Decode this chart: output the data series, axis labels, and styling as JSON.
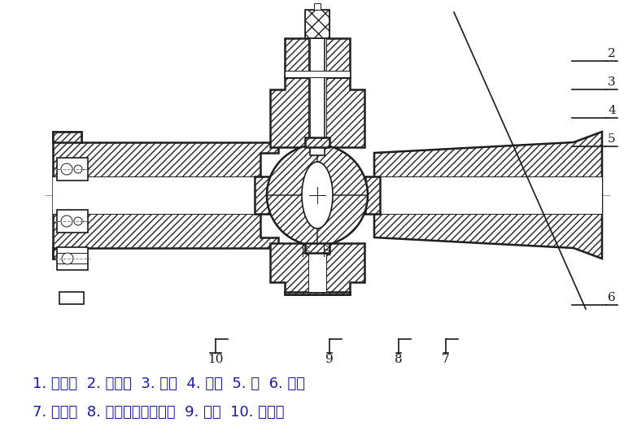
{
  "bg_color": "#ffffff",
  "line_color": "#1a1a1a",
  "hatch_color": "#222222",
  "label_color": "#1a1aaa",
  "fig_width": 7.83,
  "fig_height": 5.46,
  "dpi": 100,
  "caption_line1": "1. 上阀杆  2. 右阀体  3. 凸轮  4. 球体  5. 键  6. 阀座",
  "caption_line2": "7. 软密封  8. 下阀杆（带凸轮）  9. 板弹  10. 左阀体"
}
